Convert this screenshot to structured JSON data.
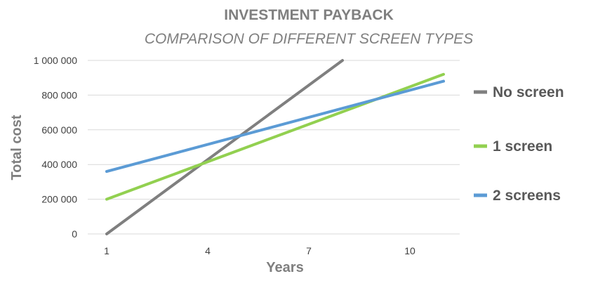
{
  "chart_data": {
    "type": "line",
    "title": "INVESTMENT PAYBACK",
    "subtitle": "COMPARISON OF DIFFERENT SCREEN TYPES",
    "xlabel": "Years",
    "ylabel": "Total cost",
    "xlim": [
      1,
      11
    ],
    "ylim": [
      0,
      1000000
    ],
    "x_ticks": [
      1,
      4,
      7,
      10
    ],
    "x_tick_labels": [
      "1",
      "4",
      "7",
      "10"
    ],
    "y_ticks": [
      0,
      200000,
      400000,
      600000,
      800000,
      1000000
    ],
    "y_tick_labels": [
      "0",
      "200 000",
      "400 000",
      "600 000",
      "800 000",
      "1 000 000"
    ],
    "grid": true,
    "legend_position": "right",
    "series": [
      {
        "name": "No screen",
        "color": "#7f7f7f",
        "x": [
          1,
          8
        ],
        "values": [
          0,
          1000000
        ]
      },
      {
        "name": "1 screen",
        "color": "#92d050",
        "x": [
          1,
          11
        ],
        "values": [
          200000,
          920000
        ]
      },
      {
        "name": "2 screens",
        "color": "#5b9bd5",
        "x": [
          1,
          11
        ],
        "values": [
          360000,
          880000
        ]
      }
    ]
  }
}
